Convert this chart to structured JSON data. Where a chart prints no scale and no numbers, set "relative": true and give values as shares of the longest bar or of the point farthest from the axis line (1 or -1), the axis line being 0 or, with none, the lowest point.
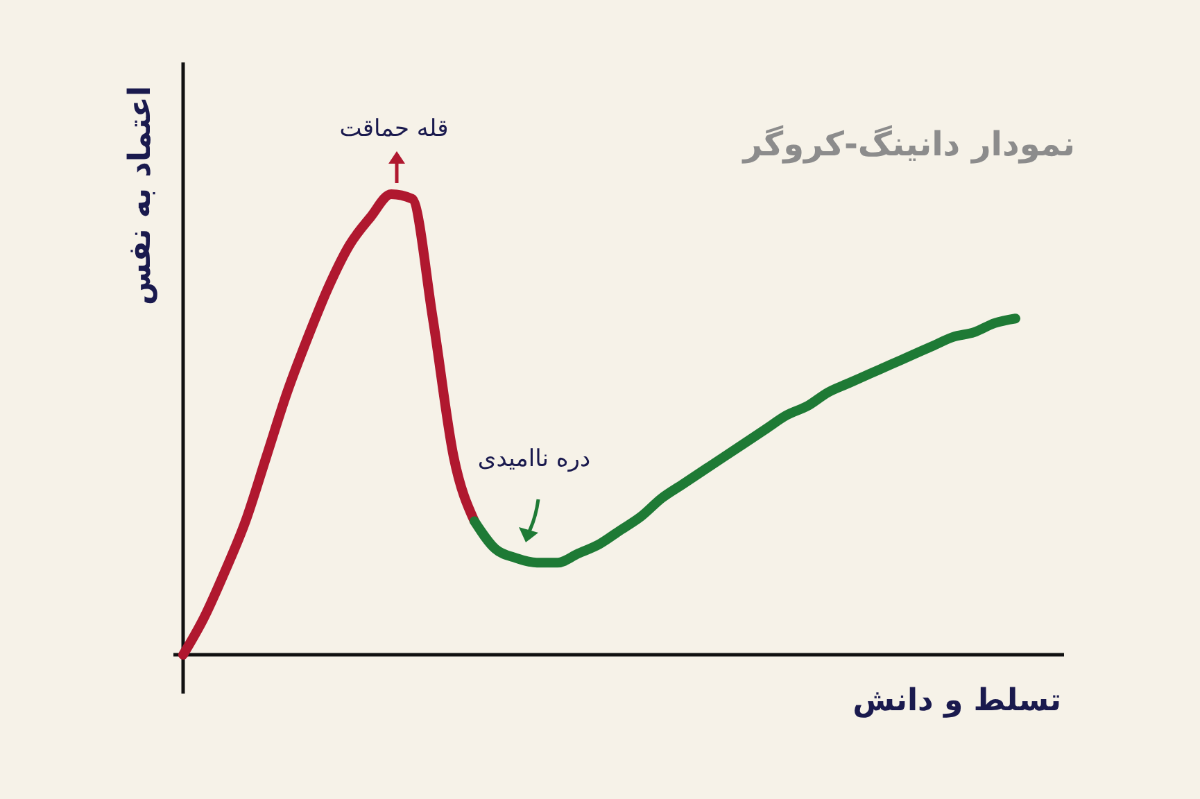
{
  "chart_data": {
    "type": "line",
    "title": "نمودار دانینگ-کروگر",
    "xlabel": "تسلط و دانش",
    "ylabel": "اعتماد به نفس",
    "relative": true,
    "marker": "none",
    "line_style": "solid",
    "categories": [
      null,
      null,
      null,
      null,
      null,
      null,
      null,
      null,
      null,
      null,
      null,
      null,
      null,
      null,
      null,
      null,
      null,
      null,
      null,
      null,
      null,
      null,
      null,
      null,
      null,
      null,
      null,
      null,
      null,
      null,
      null,
      null,
      null,
      null,
      null,
      null,
      null,
      null,
      null,
      null,
      null
    ],
    "series": [
      {
        "color": "#b0182f",
        "values": [
          0,
          0.08,
          0.18,
          0.29,
          0.43,
          0.57,
          0.69,
          0.8,
          0.89,
          0.95,
          1,
          0.99,
          0.73,
          0.43,
          0.29,
          null,
          null,
          null,
          null,
          null,
          null,
          null,
          null,
          null,
          null,
          null,
          null,
          null,
          null,
          null,
          null,
          null,
          null,
          null,
          null,
          null,
          null,
          null,
          null,
          null,
          null
        ]
      },
      {
        "color": "#1e7a35",
        "values": [
          null,
          null,
          null,
          null,
          null,
          null,
          null,
          null,
          null,
          null,
          null,
          null,
          null,
          null,
          0.29,
          0.23,
          0.21,
          0.2,
          0.2,
          0.22,
          0.24,
          0.27,
          0.3,
          0.34,
          0.37,
          0.4,
          0.43,
          0.46,
          0.49,
          0.52,
          0.54,
          0.57,
          0.59,
          0.61,
          0.63,
          0.65,
          0.67,
          0.69,
          0.7,
          0.72,
          0.73
        ]
      }
    ],
    "annotations": [
      "قله حماقت",
      "دره ناامیدی"
    ]
  }
}
